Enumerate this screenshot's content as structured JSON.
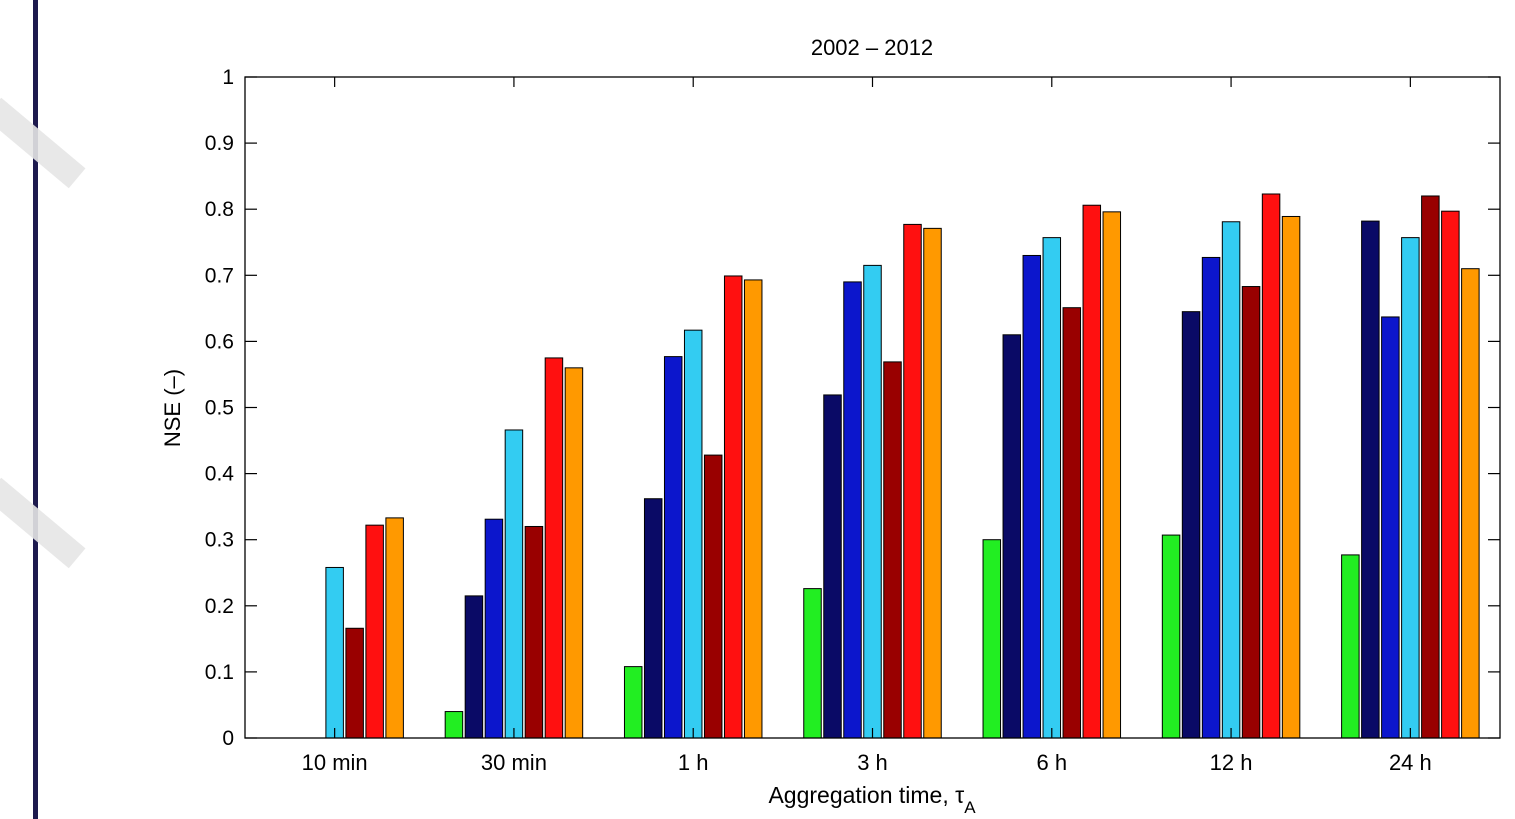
{
  "chart_data": {
    "type": "bar",
    "title": "2002 – 2012",
    "xlabel": "Aggregation time, τ",
    "xlabel_subscript": "A",
    "ylabel": "NSE (–)",
    "ylim": [
      0,
      1
    ],
    "yticks": [
      "0",
      "0.1",
      "0.2",
      "0.3",
      "0.4",
      "0.5",
      "0.6",
      "0.7",
      "0.8",
      "0.9",
      "1"
    ],
    "categories": [
      "10 min",
      "30 min",
      "1 h",
      "3 h",
      "6 h",
      "12 h",
      "24 h"
    ],
    "grid": false,
    "legend": "none",
    "series": [
      {
        "color": "#22ee22",
        "values": [
          null,
          0.04,
          0.108,
          0.226,
          0.3,
          0.307,
          0.277
        ]
      },
      {
        "color": "#0a0a66",
        "values": [
          null,
          0.215,
          0.362,
          0.519,
          0.61,
          0.645,
          0.782
        ]
      },
      {
        "color": "#0c16cc",
        "values": [
          null,
          0.331,
          0.577,
          0.69,
          0.73,
          0.727,
          0.637
        ]
      },
      {
        "color": "#33ccf2",
        "values": [
          0.258,
          0.466,
          0.617,
          0.715,
          0.757,
          0.781,
          0.757
        ]
      },
      {
        "color": "#990000",
        "values": [
          0.166,
          0.32,
          0.428,
          0.569,
          0.651,
          0.683,
          0.82
        ]
      },
      {
        "color": "#ff1010",
        "values": [
          0.322,
          0.575,
          0.699,
          0.777,
          0.806,
          0.823,
          0.797
        ]
      },
      {
        "color": "#ff9900",
        "values": [
          0.333,
          0.56,
          0.693,
          0.771,
          0.796,
          0.789,
          0.71
        ]
      }
    ]
  }
}
